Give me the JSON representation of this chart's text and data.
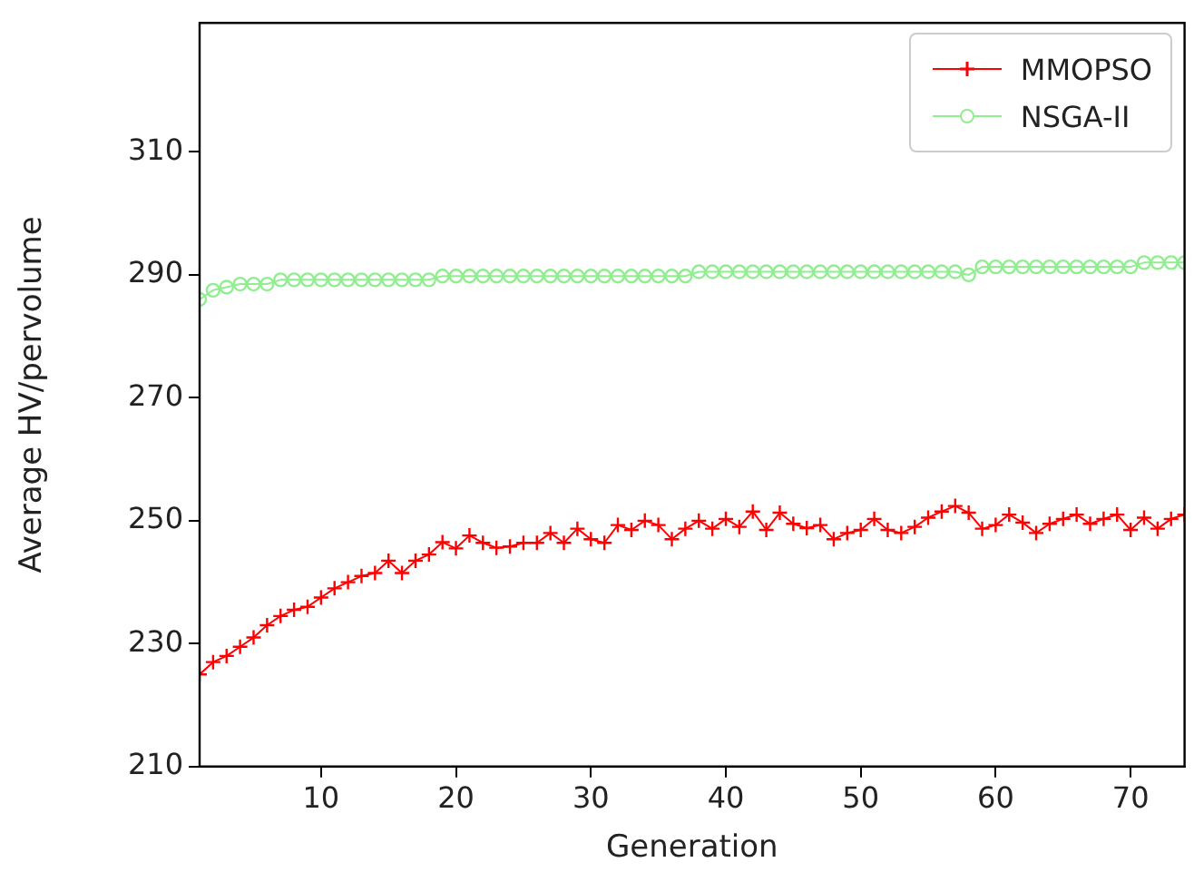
{
  "chart_data": {
    "type": "line",
    "xlabel": "Generation",
    "ylabel": "Average HV/pervolume",
    "x": [
      1,
      2,
      3,
      4,
      5,
      6,
      7,
      8,
      9,
      10,
      11,
      12,
      13,
      14,
      15,
      16,
      17,
      18,
      19,
      20,
      21,
      22,
      23,
      24,
      25,
      26,
      27,
      28,
      29,
      30,
      31,
      32,
      33,
      34,
      35,
      36,
      37,
      38,
      39,
      40,
      41,
      42,
      43,
      44,
      45,
      46,
      47,
      48,
      49,
      50,
      51,
      52,
      53,
      54,
      55,
      56,
      57,
      58,
      59,
      60,
      61,
      62,
      63,
      64,
      65,
      66,
      67,
      68,
      69,
      70,
      71,
      72,
      73,
      74
    ],
    "series": [
      {
        "name": "MMOPSO",
        "color": "#ff0000",
        "marker": "cross",
        "values": [
          225,
          227,
          228,
          229.5,
          231,
          233,
          234.5,
          235.5,
          236,
          237.5,
          239,
          240,
          241,
          241.5,
          243.5,
          241.5,
          243.5,
          244.5,
          246.5,
          245.5,
          247.6,
          246.4,
          245.6,
          245.8,
          246.4,
          246.4,
          248,
          246.4,
          248.7,
          247,
          246.4,
          249.3,
          248.5,
          250,
          249.3,
          247,
          248.7,
          250,
          248.7,
          250.3,
          249,
          251.5,
          248.5,
          251.3,
          249.5,
          248.8,
          249.3,
          247,
          248,
          248.5,
          250.3,
          248.5,
          248,
          249,
          250.5,
          251.5,
          252.4,
          251.3,
          248.7,
          249.3,
          251,
          249.7,
          248,
          249.5,
          250.3,
          251,
          249.5,
          250.3,
          251,
          248.5,
          250.5,
          248.7,
          250.3,
          251
        ]
      },
      {
        "name": "NSGA-II",
        "color": "#90ee90",
        "marker": "circle",
        "values": [
          286,
          287.5,
          288,
          288.5,
          288.5,
          288.5,
          289.2,
          289.2,
          289.2,
          289.2,
          289.2,
          289.2,
          289.2,
          289.2,
          289.2,
          289.2,
          289.2,
          289.2,
          289.8,
          289.8,
          289.8,
          289.8,
          289.8,
          289.8,
          289.8,
          289.8,
          289.8,
          289.8,
          289.8,
          289.8,
          289.8,
          289.8,
          289.8,
          289.8,
          289.8,
          289.8,
          289.8,
          290.5,
          290.5,
          290.5,
          290.5,
          290.5,
          290.5,
          290.5,
          290.5,
          290.5,
          290.5,
          290.5,
          290.5,
          290.5,
          290.5,
          290.5,
          290.5,
          290.5,
          290.5,
          290.5,
          290.5,
          290,
          291.3,
          291.3,
          291.3,
          291.3,
          291.3,
          291.3,
          291.3,
          291.3,
          291.3,
          291.3,
          291.3,
          291.3,
          292,
          292,
          292,
          292
        ]
      }
    ],
    "xlim": [
      1,
      74
    ],
    "xticks": [
      10,
      20,
      30,
      40,
      50,
      60,
      70
    ],
    "ylim": [
      210,
      331
    ],
    "yticks": [
      210,
      230,
      250,
      270,
      290,
      310
    ],
    "legend": "top right",
    "grid": false,
    "line_style": "solid"
  }
}
